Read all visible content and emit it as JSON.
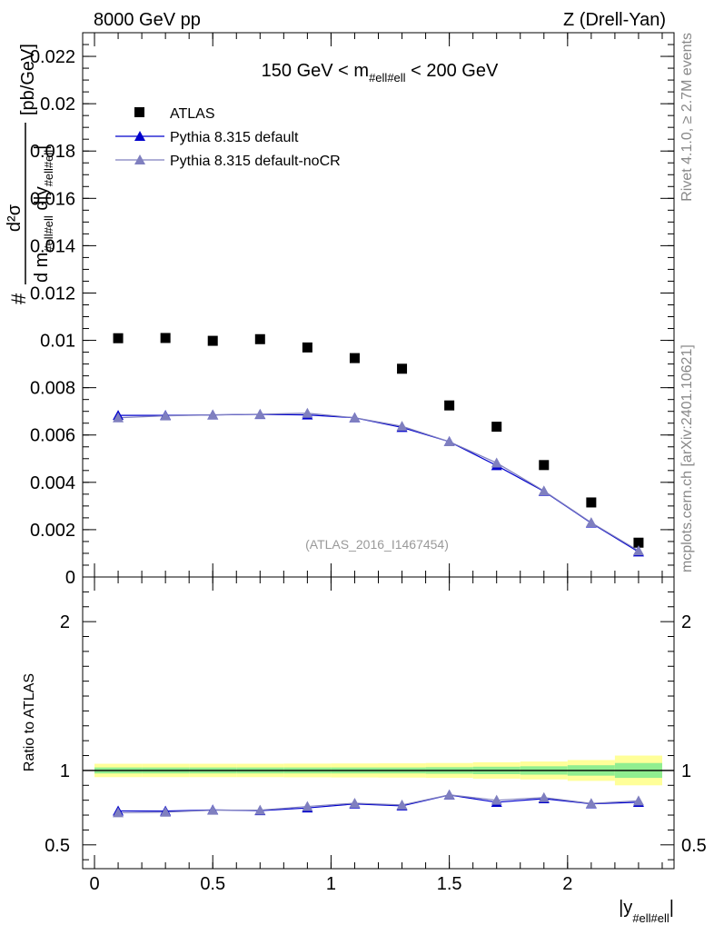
{
  "header": {
    "left": "8000 GeV pp",
    "right": "Z (Drell-Yan)"
  },
  "side_labels": {
    "rivet": "Rivet 4.1.0, ≥ 2.7M events",
    "mcplots": "mcplots.cern.ch [arXiv:2401.10621]"
  },
  "chart_data": [
    {
      "type": "scatter",
      "panel": "main",
      "title_parts": {
        "pre": "150 GeV < m",
        "sub": "#ell#ell",
        "post": " < 200 GeV"
      },
      "watermark": "(ATLAS_2016_I1467454)",
      "ylabel_parts": {
        "num_hash": "#",
        "num": "d²σ",
        "den_pre": "d m",
        "den_sub1": "#ell#ell",
        "den_mid": " d|y",
        "den_sub2": "#ell#ell",
        "den_post": "|",
        "units": "[pb/GeV]"
      },
      "xlim": [
        -0.05,
        2.45
      ],
      "ylim": [
        0,
        0.023
      ],
      "yticks": [
        0,
        0.002,
        0.004,
        0.006,
        0.008,
        0.01,
        0.012,
        0.014,
        0.016,
        0.018,
        0.02,
        0.022
      ],
      "ytick_labels": [
        "0",
        "0.002",
        "0.004",
        "0.006",
        "0.008",
        "0.01",
        "0.012",
        "0.014",
        "0.016",
        "0.018",
        "0.02",
        "0.022"
      ],
      "x": [
        0.1,
        0.3,
        0.5,
        0.7,
        0.9,
        1.1,
        1.3,
        1.5,
        1.7,
        1.9,
        2.1,
        2.3
      ],
      "legend": [
        "ATLAS",
        "Pythia 8.315 default",
        "Pythia 8.315 default-noCR"
      ],
      "series": [
        {
          "name": "ATLAS",
          "color": "#000000",
          "marker": "square",
          "values": [
            0.01009,
            0.0101,
            0.00998,
            0.01005,
            0.0097,
            0.00925,
            0.0088,
            0.00725,
            0.00635,
            0.00473,
            0.00315,
            0.00145
          ]
        },
        {
          "name": "Pythia 8.315 default",
          "color": "#0000cc",
          "marker": "triangle",
          "values": [
            0.00683,
            0.00683,
            0.00685,
            0.00687,
            0.00685,
            0.00673,
            0.00632,
            0.00572,
            0.00471,
            0.00362,
            0.00228,
            0.00106
          ]
        },
        {
          "name": "Pythia 8.315 default-noCR",
          "color": "#7f7fbf",
          "marker": "triangle",
          "values": [
            0.00673,
            0.00681,
            0.00685,
            0.00688,
            0.00692,
            0.00673,
            0.00637,
            0.00572,
            0.00482,
            0.00364,
            0.0023,
            0.00111
          ]
        }
      ]
    },
    {
      "type": "line",
      "panel": "ratio",
      "ylabel": "Ratio to ATLAS",
      "xlabel_parts": {
        "pre": "|y",
        "sub": "#ell#ell",
        "post": "|"
      },
      "xlim": [
        -0.05,
        2.45
      ],
      "ylim": [
        0.34,
        2.3
      ],
      "xticks": [
        0,
        0.5,
        1,
        1.5,
        2
      ],
      "xtick_labels": [
        "0",
        "0.5",
        "1",
        "1.5",
        "2"
      ],
      "yticks": [
        0.5,
        1,
        2
      ],
      "ytick_labels": [
        "0.5",
        "1",
        "2"
      ],
      "reference": 1.0,
      "bins": [
        [
          0,
          0.2
        ],
        [
          0.2,
          0.4
        ],
        [
          0.4,
          0.6
        ],
        [
          0.6,
          0.8
        ],
        [
          0.8,
          1.0
        ],
        [
          1.0,
          1.2
        ],
        [
          1.2,
          1.4
        ],
        [
          1.4,
          1.6
        ],
        [
          1.6,
          1.8
        ],
        [
          1.8,
          2.0
        ],
        [
          2.0,
          2.2
        ],
        [
          2.2,
          2.4
        ]
      ],
      "band_stat": [
        0.02,
        0.02,
        0.02,
        0.02,
        0.02,
        0.02,
        0.02,
        0.022,
        0.025,
        0.028,
        0.035,
        0.05
      ],
      "band_total": [
        0.045,
        0.045,
        0.045,
        0.045,
        0.046,
        0.047,
        0.048,
        0.05,
        0.055,
        0.06,
        0.07,
        0.1
      ],
      "band_stat_color": "#90ee90",
      "band_total_color": "#ffff99",
      "x": [
        0.1,
        0.3,
        0.5,
        0.7,
        0.9,
        1.1,
        1.3,
        1.5,
        1.7,
        1.9,
        2.1,
        2.3
      ],
      "series": [
        {
          "name": "Pythia 8.315 default",
          "color": "#0000cc",
          "values": [
            0.728,
            0.727,
            0.735,
            0.73,
            0.748,
            0.775,
            0.762,
            0.835,
            0.786,
            0.81,
            0.776,
            0.786
          ]
        },
        {
          "name": "Pythia 8.315 default-noCR",
          "color": "#7f7fbf",
          "values": [
            0.716,
            0.72,
            0.733,
            0.733,
            0.758,
            0.78,
            0.768,
            0.836,
            0.8,
            0.818,
            0.778,
            0.796
          ]
        }
      ]
    }
  ]
}
